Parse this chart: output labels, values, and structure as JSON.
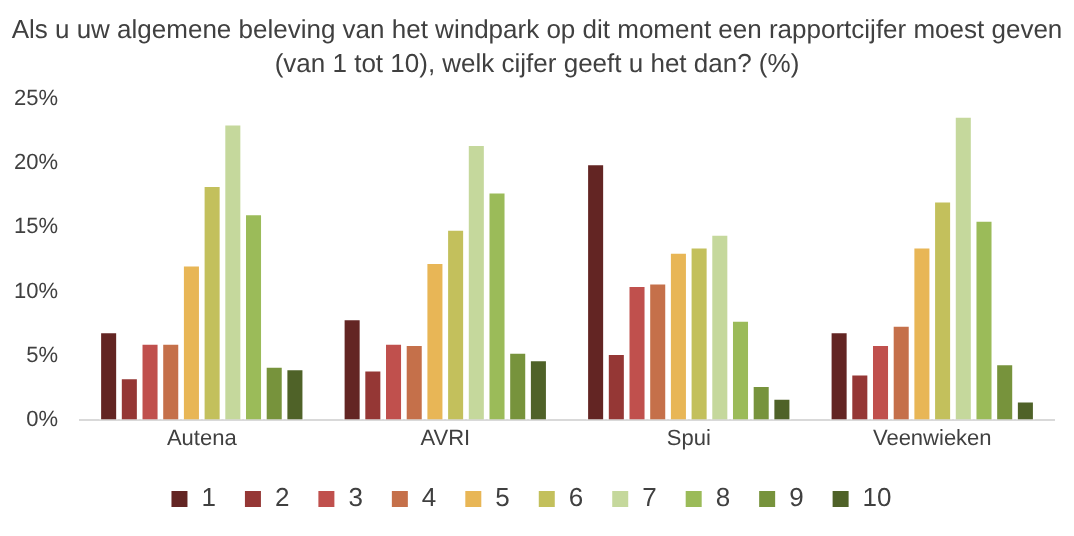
{
  "chart_data": {
    "type": "bar",
    "title": "Als u uw algemene beleving van het windpark op dit moment een rapportcijfer moest geven (van 1 tot 10), welk cijfer geeft u het dan? (%)",
    "categories": [
      "Autena",
      "AVRI",
      "Spui",
      "Veenwieken"
    ],
    "series": [
      {
        "name": "1",
        "color": "#632523",
        "values": [
          6.9,
          7.9,
          20.0,
          6.9
        ]
      },
      {
        "name": "2",
        "color": "#953735",
        "values": [
          3.3,
          3.9,
          5.2,
          3.6
        ]
      },
      {
        "name": "3",
        "color": "#c0504d",
        "values": [
          6.0,
          6.0,
          10.5,
          5.9
        ]
      },
      {
        "name": "4",
        "color": "#c5704a",
        "values": [
          6.0,
          5.9,
          10.7,
          7.4
        ]
      },
      {
        "name": "5",
        "color": "#e8b656",
        "values": [
          12.1,
          12.3,
          13.1,
          13.5
        ]
      },
      {
        "name": "6",
        "color": "#c3c05c",
        "values": [
          18.3,
          14.9,
          13.5,
          17.1
        ]
      },
      {
        "name": "7",
        "color": "#c5d89c",
        "values": [
          23.1,
          21.5,
          14.5,
          23.7
        ]
      },
      {
        "name": "8",
        "color": "#9bbb59",
        "values": [
          16.1,
          17.8,
          7.8,
          15.6
        ]
      },
      {
        "name": "9",
        "color": "#77933c",
        "values": [
          4.2,
          5.3,
          2.7,
          4.4
        ]
      },
      {
        "name": "10",
        "color": "#4f6228",
        "values": [
          4.0,
          4.7,
          1.7,
          1.5
        ]
      }
    ],
    "ylim": [
      0,
      25
    ],
    "yticks": [
      {
        "value": 0,
        "label": "0%"
      },
      {
        "value": 5,
        "label": "5%"
      },
      {
        "value": 10,
        "label": "10%"
      },
      {
        "value": 15,
        "label": "15%"
      },
      {
        "value": 20,
        "label": "20%"
      },
      {
        "value": 25,
        "label": "25%"
      }
    ],
    "grid": false,
    "legend": "bottom"
  }
}
